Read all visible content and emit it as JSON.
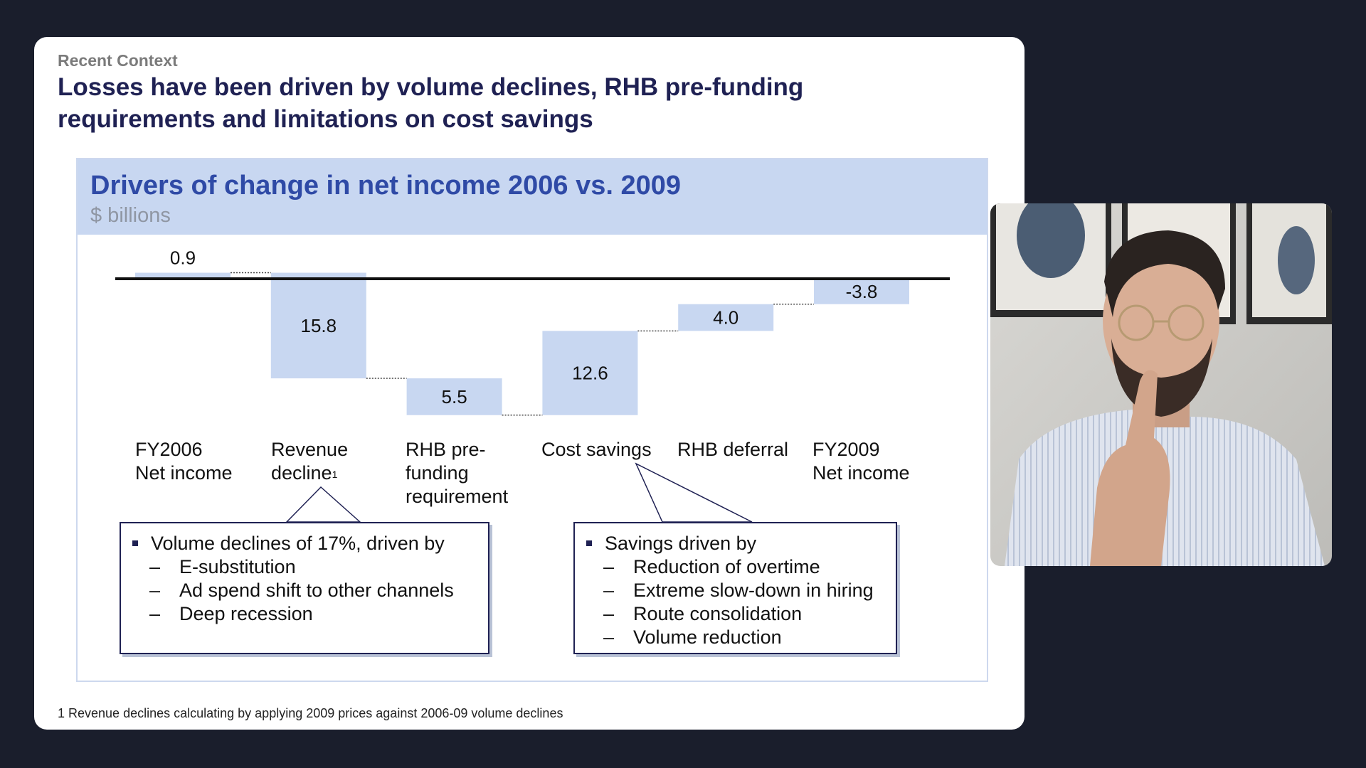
{
  "slide": {
    "kicker": "Recent Context",
    "headline": "Losses have been driven by volume declines, RHB pre-funding requirements and limitations on cost savings",
    "footnote": "1 Revenue declines calculating by applying 2009 prices against 2006-09 volume declines"
  },
  "panel": {
    "title": "Drivers of change in net income 2006 vs. 2009",
    "subtitle": "$ billions"
  },
  "chart_data": {
    "type": "waterfall",
    "categories": [
      "FY2006\nNet income",
      "Revenue\ndecline",
      "RHB pre-\nfunding\nrequirement",
      "Cost savings",
      "RHB deferral",
      "FY2009\nNet income"
    ],
    "footnote_marker": "1",
    "values": [
      0.9,
      -15.8,
      -5.5,
      12.6,
      4.0,
      -3.8
    ],
    "labels": [
      "0.9",
      "15.8",
      "5.5",
      "12.6",
      "4.0",
      "-3.8"
    ],
    "bar_color": "#c8d7f1"
  },
  "callouts": [
    {
      "bullet": "Volume declines of 17%, driven by",
      "subs": [
        "E-substitution",
        "Ad spend shift to other channels",
        "Deep recession"
      ]
    },
    {
      "bullet": "Savings driven by",
      "subs": [
        "Reduction of overtime",
        "Extreme slow-down in hiring",
        "Route consolidation",
        "Volume reduction"
      ]
    }
  ],
  "colors": {
    "background": "#1a1e2c",
    "headline": "#1f2153",
    "panel_title": "#2f4aa6",
    "panel_header": "#c8d7f1"
  }
}
